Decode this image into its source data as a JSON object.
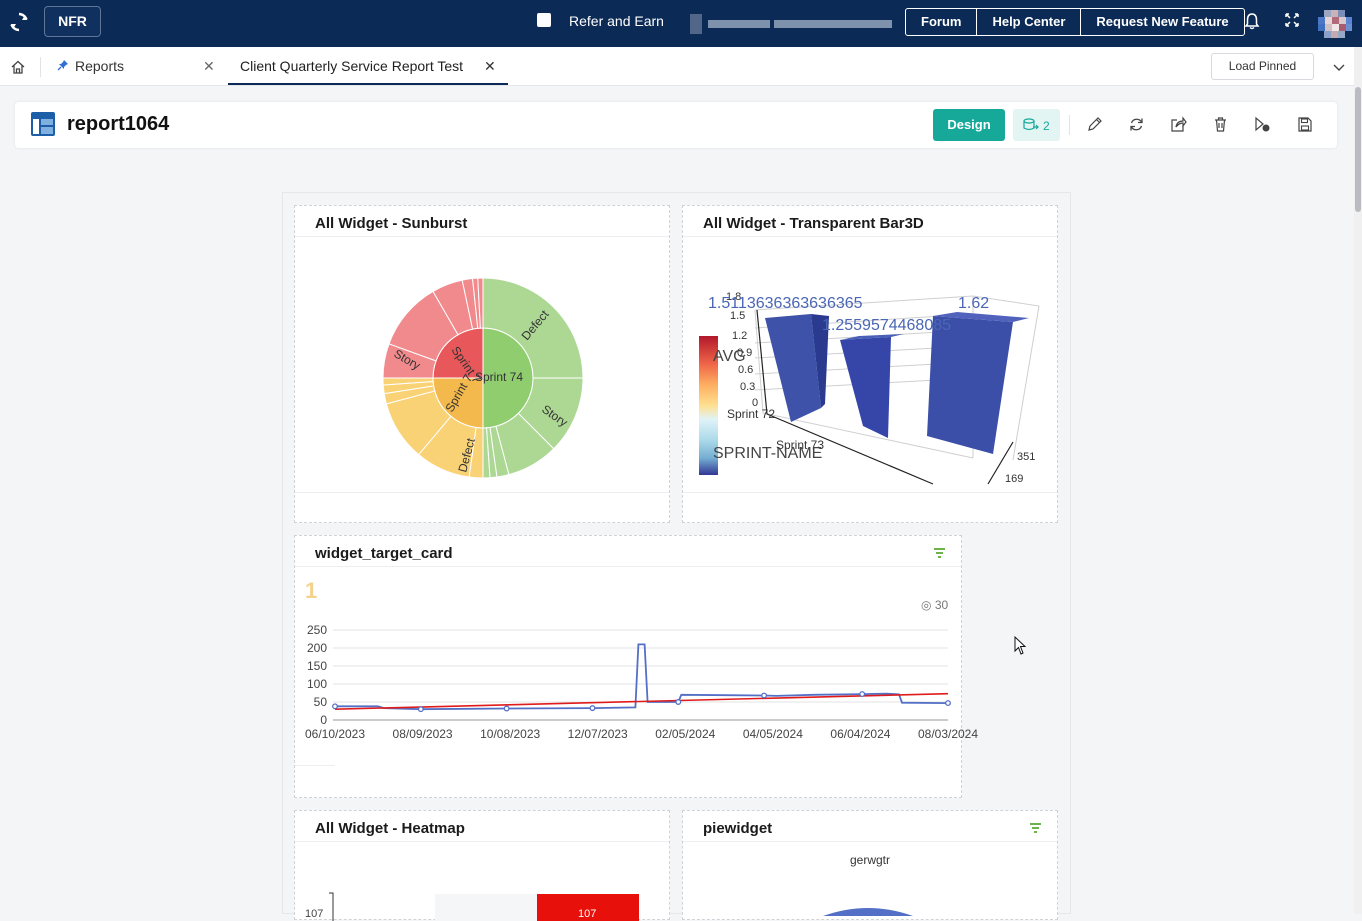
{
  "topbar": {
    "brand": "NFR",
    "refer_label": "Refer and Earn",
    "links": [
      "Forum",
      "Help Center",
      "Request New Feature"
    ]
  },
  "tabs": {
    "items": [
      {
        "label": "Reports"
      },
      {
        "label": "Client Quarterly Service Report Test"
      }
    ],
    "load_pinned": "Load Pinned"
  },
  "report": {
    "title": "report1064",
    "design_label": "Design",
    "datasource_count": "2"
  },
  "widgets": {
    "sunburst": {
      "title": "All Widget - Sunburst",
      "labels": {
        "center": "Sprint 74",
        "sprint_left_a": "Sprint 7",
        "sprint_left_b": "Sprint 7",
        "defect_a": "Defect",
        "story_a": "Story",
        "story_b": "Story",
        "defect_b": "Defect"
      }
    },
    "bar3d": {
      "title": "All Widget - Transparent Bar3D",
      "value_labels": [
        "1.5113636363636365",
        "1.62",
        "1.2559574468085"
      ],
      "yticks": [
        "1.8",
        "1.5",
        "1.2",
        "0.9",
        "0.6",
        "0.3",
        "0"
      ],
      "categories": [
        "Sprint 72",
        "Sprint 73"
      ],
      "zticks": [
        "351",
        "169"
      ],
      "axis_labels": {
        "y": "AVG",
        "x": "SPRINT-NAME"
      }
    },
    "target_card": {
      "title": "widget_target_card",
      "value": "1",
      "target": "30",
      "chart_data": {
        "type": "line",
        "yticks": [
          "250",
          "200",
          "150",
          "100",
          "50",
          "0"
        ],
        "ylim": [
          0,
          250
        ],
        "xticks": [
          "06/10/2023",
          "08/09/2023",
          "10/08/2023",
          "12/07/2023",
          "02/05/2024",
          "04/05/2024",
          "06/04/2024",
          "08/03/2024"
        ],
        "series": [
          {
            "values": [
              [
                0,
                38
              ],
              [
                0.07,
                38
              ],
              [
                0.08,
                33
              ],
              [
                0.14,
                30
              ],
              [
                0.28,
                32
              ],
              [
                0.42,
                33
              ],
              [
                0.49,
                35
              ],
              [
                0.495,
                210
              ],
              [
                0.505,
                210
              ],
              [
                0.51,
                50
              ],
              [
                0.56,
                50
              ],
              [
                0.565,
                70
              ],
              [
                0.64,
                69
              ],
              [
                0.7,
                68
              ],
              [
                0.72,
                67
              ],
              [
                0.78,
                70
              ],
              [
                0.86,
                72
              ],
              [
                0.9,
                73
              ],
              [
                0.92,
                71
              ],
              [
                0.925,
                48
              ],
              [
                1,
                47
              ]
            ]
          },
          {
            "values": [
              [
                0,
                30
              ],
              [
                1,
                73
              ]
            ]
          }
        ],
        "colors": {
          "line": "#5470c6",
          "trend": "#e01b1b"
        }
      }
    },
    "heatmap": {
      "title": "All Widget - Heatmap",
      "ylabel": "107",
      "cell_value": "107"
    },
    "pie": {
      "title": "piewidget",
      "subtitle": "gerwgtr"
    }
  }
}
